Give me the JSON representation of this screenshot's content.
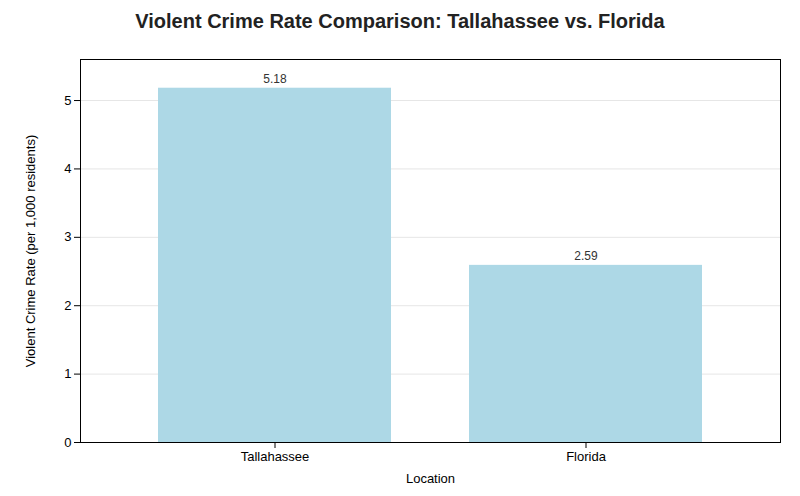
{
  "chart_data": {
    "type": "bar",
    "title": "Violent Crime Rate Comparison: Tallahassee vs. Florida",
    "categories": [
      "Tallahassee",
      "Florida"
    ],
    "values": [
      5.18,
      2.59
    ],
    "color": "#ADD8E6",
    "xlabel": "Location",
    "ylabel": "Violent Crime Rate (per 1,000 residents)",
    "ylim": [
      0,
      5.6
    ],
    "yticks": [
      0,
      1,
      2,
      3,
      4,
      5
    ],
    "grid": true,
    "data_labels": true
  }
}
